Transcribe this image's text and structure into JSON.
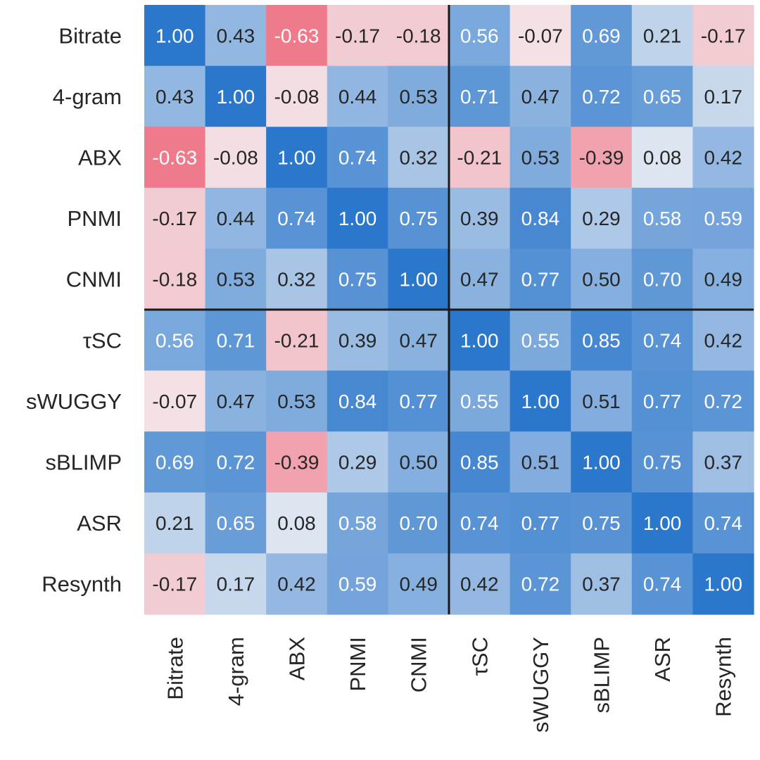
{
  "chart_data": {
    "type": "heatmap",
    "title": "",
    "xlabel": "",
    "ylabel": "",
    "labels": [
      "Bitrate",
      "4-gram",
      "ABX",
      "PNMI",
      "CNMI",
      "τSC",
      "sWUGGY",
      "sBLIMP",
      "ASR",
      "Resynth"
    ],
    "matrix": [
      [
        1.0,
        0.43,
        -0.63,
        -0.17,
        -0.18,
        0.56,
        -0.07,
        0.69,
        0.21,
        -0.17
      ],
      [
        0.43,
        1.0,
        -0.08,
        0.44,
        0.53,
        0.71,
        0.47,
        0.72,
        0.65,
        0.17
      ],
      [
        -0.63,
        -0.08,
        1.0,
        0.74,
        0.32,
        -0.21,
        0.53,
        -0.39,
        0.08,
        0.42
      ],
      [
        -0.17,
        0.44,
        0.74,
        1.0,
        0.75,
        0.39,
        0.84,
        0.29,
        0.58,
        0.59
      ],
      [
        -0.18,
        0.53,
        0.32,
        0.75,
        1.0,
        0.47,
        0.77,
        0.5,
        0.7,
        0.49
      ],
      [
        0.56,
        0.71,
        -0.21,
        0.39,
        0.47,
        1.0,
        0.55,
        0.85,
        0.74,
        0.42
      ],
      [
        -0.07,
        0.47,
        0.53,
        0.84,
        0.77,
        0.55,
        1.0,
        0.51,
        0.77,
        0.72
      ],
      [
        0.69,
        0.72,
        -0.39,
        0.29,
        0.5,
        0.85,
        0.51,
        1.0,
        0.75,
        0.37
      ],
      [
        0.21,
        0.65,
        0.08,
        0.58,
        0.7,
        0.74,
        0.77,
        0.75,
        1.0,
        0.74
      ],
      [
        -0.17,
        0.17,
        0.42,
        0.59,
        0.49,
        0.42,
        0.72,
        0.37,
        0.74,
        1.0
      ]
    ],
    "value_format": "0.00",
    "separator_after_index": 4,
    "colorscale": {
      "negative": "#ee6f81",
      "neutral": "#f4f4f6",
      "positive": "#2b77cb",
      "range": [
        -0.7,
        1.0
      ]
    },
    "text_colors": {
      "light": "#ffffff",
      "dark": "#262626"
    },
    "grid": false,
    "legend": "none"
  }
}
